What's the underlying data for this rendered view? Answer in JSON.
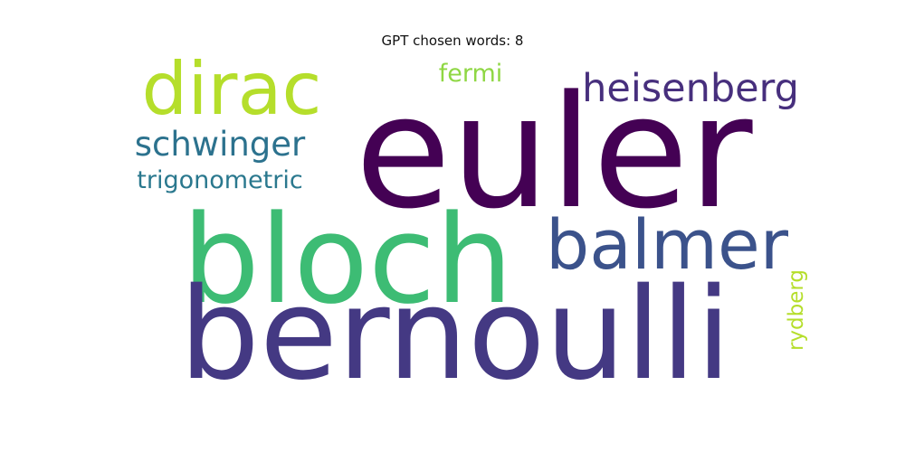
{
  "title": "GPT chosen words: 8",
  "words": [
    {
      "text": "euler",
      "color": "#440154"
    },
    {
      "text": "bloch",
      "color": "#3dbc74"
    },
    {
      "text": "bernoulli",
      "color": "#443983"
    },
    {
      "text": "dirac",
      "color": "#b5de2b"
    },
    {
      "text": "balmer",
      "color": "#3b528b"
    },
    {
      "text": "heisenberg",
      "color": "#472f7d"
    },
    {
      "text": "schwinger",
      "color": "#2c728e"
    },
    {
      "text": "trigonometric",
      "color": "#2a788e"
    },
    {
      "text": "fermi",
      "color": "#8fd744"
    },
    {
      "text": "rydberg",
      "color": "#b5de2b"
    }
  ]
}
